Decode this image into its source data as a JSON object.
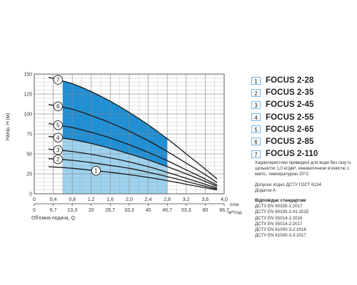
{
  "chart_data": {
    "type": "line",
    "ylabel": "Напір, H (м)",
    "xlabel_bottom": "Об'ємна подача, Q",
    "unit_top": "л/хв",
    "unit_bottom": "м³/год",
    "ylim": [
      0,
      150
    ],
    "yticks": [
      0,
      25,
      50,
      75,
      100,
      125,
      150
    ],
    "x_top_ticks": [
      "0",
      "0,4",
      "0,8",
      "1,2",
      "1,6",
      "2,0",
      "2,4",
      "2,8",
      "3,2",
      "3,6",
      "4,0"
    ],
    "x_top_range": [
      0,
      4.0
    ],
    "x_bottom_ticks": [
      "0",
      "6,7",
      "13,3",
      "20",
      "26,7",
      "33,3",
      "40",
      "46,7",
      "53,3",
      "60",
      "66,7"
    ],
    "working_zone": [
      0.6,
      2.8
    ],
    "grid": true,
    "series": [
      {
        "name": "1",
        "x": [
          0.3,
          0.8,
          1.2,
          1.6,
          2.0,
          2.4,
          2.8,
          3.2,
          3.6,
          3.85
        ],
        "y": [
          34,
          32,
          29.5,
          27,
          24,
          20.5,
          16.5,
          12,
          7.5,
          5
        ]
      },
      {
        "name": "2",
        "x": [
          0.3,
          0.8,
          1.2,
          1.6,
          2.0,
          2.4,
          2.8,
          3.2,
          3.6,
          3.85
        ],
        "y": [
          44,
          42,
          39,
          35.5,
          32,
          27,
          21.5,
          15.5,
          9.5,
          6
        ]
      },
      {
        "name": "3",
        "x": [
          0.3,
          0.8,
          1.2,
          1.6,
          2.0,
          2.4,
          2.8,
          3.2,
          3.6,
          3.85
        ],
        "y": [
          56,
          53,
          49.5,
          45,
          40,
          34,
          27,
          19.5,
          12,
          7.5
        ]
      },
      {
        "name": "4",
        "x": [
          0.3,
          0.8,
          1.2,
          1.6,
          2.0,
          2.4,
          2.8,
          3.2,
          3.6,
          3.85
        ],
        "y": [
          72,
          68,
          63,
          57,
          50,
          42.5,
          34,
          25,
          15.5,
          9.5
        ]
      },
      {
        "name": "5",
        "x": [
          0.3,
          0.8,
          1.2,
          1.6,
          2.0,
          2.4,
          2.8,
          3.2,
          3.6,
          3.85
        ],
        "y": [
          88,
          83,
          77,
          70,
          61.5,
          52,
          41.5,
          30,
          18.5,
          11
        ]
      },
      {
        "name": "6",
        "x": [
          0.3,
          0.8,
          1.2,
          1.6,
          2.0,
          2.4,
          2.8,
          3.2,
          3.6,
          3.85
        ],
        "y": [
          112,
          106,
          98,
          89,
          78.5,
          66.5,
          53,
          38.5,
          24,
          14
        ]
      },
      {
        "name": "7",
        "x": [
          0.3,
          0.8,
          1.2,
          1.6,
          2.0,
          2.4,
          2.8,
          3.2,
          3.6,
          3.85
        ],
        "y": [
          146,
          138,
          128,
          116,
          102,
          86.5,
          69,
          50,
          31,
          18.5
        ]
      }
    ],
    "curve_labels": [
      {
        "n": "1",
        "x": 1.3
      },
      {
        "n": "2",
        "x": 0.5
      },
      {
        "n": "3",
        "x": 0.5
      },
      {
        "n": "4",
        "x": 0.5
      },
      {
        "n": "5",
        "x": 0.5
      },
      {
        "n": "6",
        "x": 0.5
      },
      {
        "n": "7",
        "x": 0.5
      }
    ]
  },
  "legend": [
    {
      "num": "1",
      "name": "FOCUS 2-28"
    },
    {
      "num": "2",
      "name": "FOCUS 2-35"
    },
    {
      "num": "3",
      "name": "FOCUS 2-45"
    },
    {
      "num": "4",
      "name": "FOCUS 2-55"
    },
    {
      "num": "5",
      "name": "FOCUS 2-65"
    },
    {
      "num": "6",
      "name": "FOCUS 2-85"
    },
    {
      "num": "7",
      "name": "FOCUS 2-110"
    }
  ],
  "notes": {
    "p1": "Характеристики приведені для води без газу із щільністю 1,0 кг/дм³, кінематичною в'язкістю 1 мм²/с, температурою 20°C",
    "p2": "Допуски згідно ДСТУ ГОСТ 6134",
    "p3": "Додаток А",
    "standards_title": "Відповідає стандартам",
    "standards": [
      "ДСТУ EN 60335-1:2017",
      "ДСТУ EN 60335-2-41:2015",
      "ДСТУ EN 55014-1:2016",
      "ДСТУ EN 55014-2:2017",
      "ДСТУ EN 61000-3-2:2016",
      "ДСТУ EN 61000-3-3:2017"
    ]
  },
  "colors": {
    "zone_light": "#9ed3f0",
    "zone_dark": "#1c8fd6",
    "curve": "#1a1a1a",
    "grid": "#8a8a8a",
    "legend_border": "#6fb7e6"
  }
}
